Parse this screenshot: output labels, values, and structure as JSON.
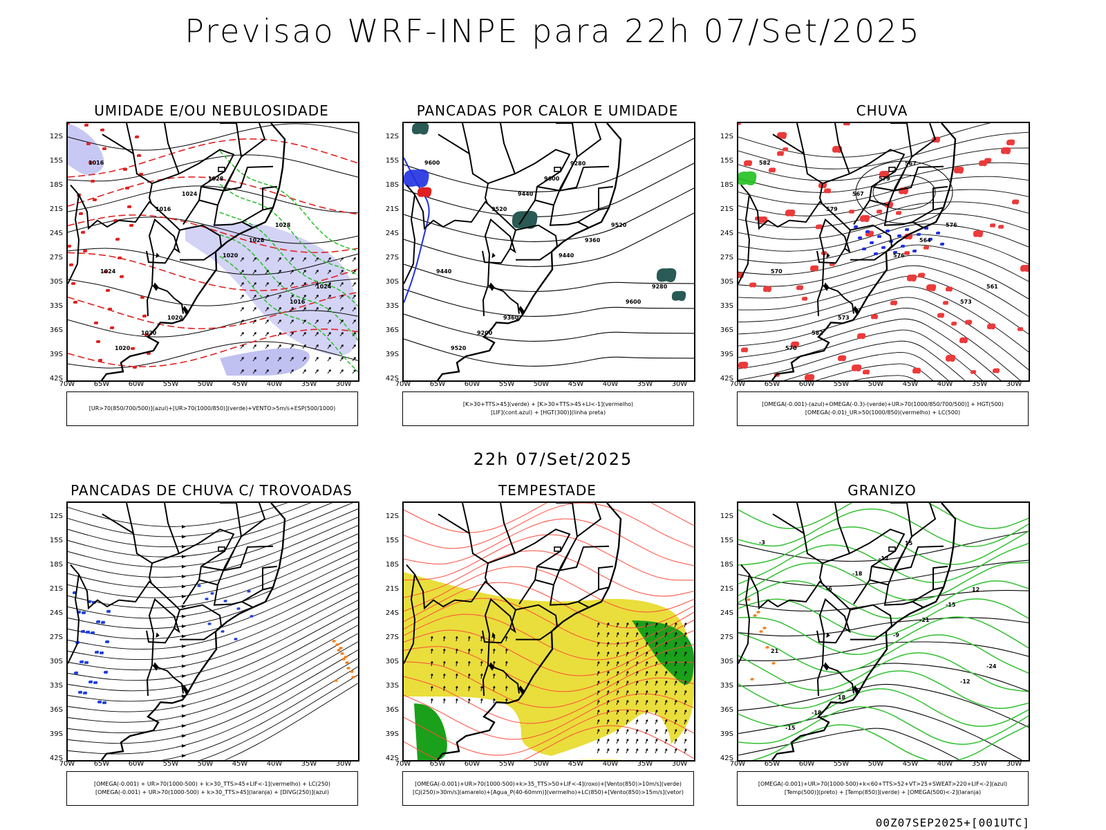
{
  "title": "Previsao WRF-INPE  para 22h 07/Set/2025",
  "mid_date": "22h 07/Set/2025",
  "footer": "00Z07SEP2025+[001UTC]",
  "axes": {
    "lat_labels": [
      "12S",
      "15S",
      "18S",
      "21S",
      "24S",
      "27S",
      "30S",
      "33S",
      "36S",
      "39S",
      "42S"
    ],
    "lon_labels": [
      "70W",
      "65W",
      "60W",
      "55W",
      "50W",
      "45W",
      "40W",
      "35W",
      "30W"
    ]
  },
  "panels": [
    {
      "title": "UMIDADE E/OU NEBULOSIDADE",
      "legend": [
        "[UR>70(850/700/500)](azul)+[UR>70(1000/850)](verde)+VENTO>5m/s+ESP(500/1000)"
      ],
      "labels": [
        "1016",
        "1016",
        "1020",
        "1016",
        "1020",
        "1024",
        "1028",
        "1024",
        "1020",
        "1028",
        "1028",
        "1024",
        "1020"
      ]
    },
    {
      "title": "PANCADAS POR CALOR E UMIDADE",
      "legend": [
        "[K>30+TTS>45](verde)  +  [K>30+TTS>45+LI<-1](vermelho)",
        "[LIF](cont.azul)  +  [HGT(300)](linha preta)"
      ],
      "labels": [
        "9600",
        "9520",
        "9440",
        "9600",
        "9520",
        "9440",
        "9360",
        "9280",
        "9200",
        "9600",
        "9520",
        "9440",
        "9360",
        "9280"
      ]
    },
    {
      "title": "CHUVA",
      "legend": [
        "[OMEGA(-0.001)-(azul)+OMEGA(-0.3)-(verde)+UR>70(1000/850/700/500)]  +  HGT(500)",
        "[OMEGA(-0.01)_UR>50(1000/850)(vermelho)  +  LC(500)"
      ],
      "labels": [
        "582",
        "579",
        "576",
        "573",
        "570",
        "567",
        "564",
        "561",
        "582",
        "579",
        "576",
        "570",
        "573",
        "567"
      ]
    },
    {
      "title": "PANCADAS DE CHUVA C/ TROVOADAS",
      "legend": [
        "[OMEGA(-0.001)  +  UR>70(1000-500)  +  k>30_TTS>45+LIF<-1](vermelho)  +  LC(250)",
        "[OMEGA(-0.001)  +  UR>70(1000-500)  +  k>30_TTS>45](laranja)  +  [DIVG(250)](azul)"
      ],
      "labels": []
    },
    {
      "title": "TEMPESTADE",
      "legend": [
        "[OMEGA(-0.001)+UR>70(1000-500)+k>35_TTS>50+LIF<-4](roxo)+[Vento(850)>10m/s](verde)",
        "[CJ(250)>30m/s](amarelo)+[Agua_P(40-60mm)](vermelho)+LC(850)+[Vento(850)>15m/s](vetor)"
      ],
      "labels": []
    },
    {
      "title": "GRANIZO",
      "legend": [
        "[OMEGA(-0.001)+UR>70(1000-500)+k<60+TTS>52+VT>25+SWEAT>220+LIF<-2](azul)",
        "[Temp(500)](preto)  +  [Temp(850)](verde)  +  [OMEGA(500)<-2](laranja)"
      ],
      "labels": [
        "-3",
        "-6",
        "-9",
        "-12",
        "-15",
        "-18",
        "-21",
        "-24",
        "-18",
        "-12",
        "-15",
        "21",
        "18",
        "15",
        "12"
      ]
    }
  ]
}
